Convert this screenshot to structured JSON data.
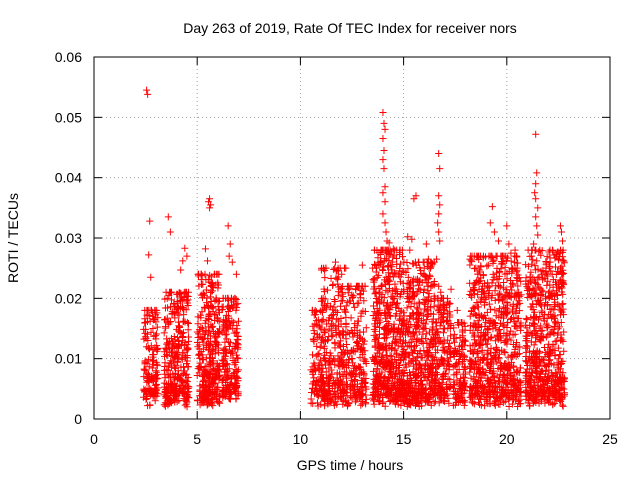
{
  "chart_data": {
    "type": "scatter",
    "title": "Day 263 of 2019, Rate Of TEC Index for receiver nors",
    "xlabel": "GPS time / hours",
    "ylabel": "ROTI / TECUs",
    "xlim": [
      0,
      25
    ],
    "ylim": [
      0,
      0.06
    ],
    "x_ticks": [
      "0",
      "5",
      "10",
      "15",
      "20",
      "25"
    ],
    "y_ticks": [
      "0",
      "0.01",
      "0.02",
      "0.03",
      "0.04",
      "0.05",
      "0.06"
    ],
    "grid": true,
    "marker": "plus",
    "color": "#ff0000",
    "clusters": [
      {
        "x_start": 2.4,
        "x_end": 3.1,
        "y_min": 0.002,
        "y_max": 0.018,
        "count": 150
      },
      {
        "x_start": 3.4,
        "x_end": 4.6,
        "y_min": 0.002,
        "y_max": 0.021,
        "count": 320
      },
      {
        "x_start": 5.0,
        "x_end": 6.1,
        "y_min": 0.002,
        "y_max": 0.024,
        "count": 320
      },
      {
        "x_start": 6.2,
        "x_end": 7.0,
        "y_min": 0.003,
        "y_max": 0.02,
        "count": 200
      },
      {
        "x_start": 10.5,
        "x_end": 11.2,
        "y_min": 0.002,
        "y_max": 0.018,
        "count": 100
      },
      {
        "x_start": 11.0,
        "x_end": 12.2,
        "y_min": 0.002,
        "y_max": 0.025,
        "count": 260
      },
      {
        "x_start": 12.2,
        "x_end": 13.2,
        "y_min": 0.002,
        "y_max": 0.022,
        "count": 200
      },
      {
        "x_start": 13.5,
        "x_end": 15.0,
        "y_min": 0.002,
        "y_max": 0.028,
        "count": 520
      },
      {
        "x_start": 15.0,
        "x_end": 16.5,
        "y_min": 0.002,
        "y_max": 0.026,
        "count": 460
      },
      {
        "x_start": 16.5,
        "x_end": 17.3,
        "y_min": 0.002,
        "y_max": 0.02,
        "count": 170
      },
      {
        "x_start": 17.4,
        "x_end": 18.0,
        "y_min": 0.002,
        "y_max": 0.016,
        "count": 120
      },
      {
        "x_start": 18.2,
        "x_end": 20.7,
        "y_min": 0.002,
        "y_max": 0.027,
        "count": 700
      },
      {
        "x_start": 20.9,
        "x_end": 22.8,
        "y_min": 0.002,
        "y_max": 0.028,
        "count": 600
      }
    ],
    "outliers": [
      {
        "x": 2.55,
        "y": 0.0545
      },
      {
        "x": 2.6,
        "y": 0.0538
      },
      {
        "x": 2.7,
        "y": 0.0328
      },
      {
        "x": 2.65,
        "y": 0.0272
      },
      {
        "x": 2.75,
        "y": 0.0235
      },
      {
        "x": 3.6,
        "y": 0.0335
      },
      {
        "x": 3.7,
        "y": 0.031
      },
      {
        "x": 4.4,
        "y": 0.0283
      },
      {
        "x": 4.3,
        "y": 0.0262
      },
      {
        "x": 4.2,
        "y": 0.0247
      },
      {
        "x": 4.5,
        "y": 0.027
      },
      {
        "x": 5.4,
        "y": 0.0282
      },
      {
        "x": 5.55,
        "y": 0.036
      },
      {
        "x": 5.6,
        "y": 0.0365
      },
      {
        "x": 5.65,
        "y": 0.0355
      },
      {
        "x": 5.6,
        "y": 0.035
      },
      {
        "x": 5.5,
        "y": 0.0262
      },
      {
        "x": 6.5,
        "y": 0.032
      },
      {
        "x": 6.6,
        "y": 0.029
      },
      {
        "x": 6.55,
        "y": 0.027
      },
      {
        "x": 6.7,
        "y": 0.026
      },
      {
        "x": 6.9,
        "y": 0.024
      },
      {
        "x": 11.7,
        "y": 0.026
      },
      {
        "x": 12.2,
        "y": 0.025
      },
      {
        "x": 12.0,
        "y": 0.024
      },
      {
        "x": 13.0,
        "y": 0.0255
      },
      {
        "x": 13.5,
        "y": 0.025
      },
      {
        "x": 14.0,
        "y": 0.0508
      },
      {
        "x": 14.05,
        "y": 0.049
      },
      {
        "x": 14.1,
        "y": 0.048
      },
      {
        "x": 14.0,
        "y": 0.0465
      },
      {
        "x": 14.05,
        "y": 0.0445
      },
      {
        "x": 14.0,
        "y": 0.043
      },
      {
        "x": 14.05,
        "y": 0.0415
      },
      {
        "x": 14.1,
        "y": 0.0385
      },
      {
        "x": 14.0,
        "y": 0.0375
      },
      {
        "x": 14.1,
        "y": 0.036
      },
      {
        "x": 14.0,
        "y": 0.034
      },
      {
        "x": 14.1,
        "y": 0.0325
      },
      {
        "x": 14.15,
        "y": 0.031
      },
      {
        "x": 14.2,
        "y": 0.0295
      },
      {
        "x": 14.05,
        "y": 0.028
      },
      {
        "x": 14.3,
        "y": 0.0292
      },
      {
        "x": 14.5,
        "y": 0.0282
      },
      {
        "x": 15.2,
        "y": 0.0302
      },
      {
        "x": 15.4,
        "y": 0.0298
      },
      {
        "x": 15.5,
        "y": 0.0365
      },
      {
        "x": 15.6,
        "y": 0.037
      },
      {
        "x": 15.3,
        "y": 0.028
      },
      {
        "x": 16.1,
        "y": 0.029
      },
      {
        "x": 16.2,
        "y": 0.0265
      },
      {
        "x": 16.0,
        "y": 0.025
      },
      {
        "x": 16.7,
        "y": 0.044
      },
      {
        "x": 16.75,
        "y": 0.0415
      },
      {
        "x": 16.7,
        "y": 0.037
      },
      {
        "x": 16.75,
        "y": 0.0355
      },
      {
        "x": 16.7,
        "y": 0.034
      },
      {
        "x": 16.65,
        "y": 0.0325
      },
      {
        "x": 16.7,
        "y": 0.031
      },
      {
        "x": 16.75,
        "y": 0.0295
      },
      {
        "x": 16.6,
        "y": 0.0265
      },
      {
        "x": 16.7,
        "y": 0.022
      },
      {
        "x": 16.8,
        "y": 0.021
      },
      {
        "x": 17.3,
        "y": 0.0215
      },
      {
        "x": 17.6,
        "y": 0.018
      },
      {
        "x": 18.2,
        "y": 0.0225
      },
      {
        "x": 18.5,
        "y": 0.025
      },
      {
        "x": 19.2,
        "y": 0.0325
      },
      {
        "x": 19.3,
        "y": 0.0352
      },
      {
        "x": 19.4,
        "y": 0.031
      },
      {
        "x": 19.6,
        "y": 0.0295
      },
      {
        "x": 20.0,
        "y": 0.032
      },
      {
        "x": 20.1,
        "y": 0.029
      },
      {
        "x": 20.4,
        "y": 0.028
      },
      {
        "x": 20.2,
        "y": 0.0275
      },
      {
        "x": 20.5,
        "y": 0.025
      },
      {
        "x": 19.8,
        "y": 0.027
      },
      {
        "x": 21.4,
        "y": 0.0472
      },
      {
        "x": 21.45,
        "y": 0.0408
      },
      {
        "x": 21.4,
        "y": 0.039
      },
      {
        "x": 21.35,
        "y": 0.0375
      },
      {
        "x": 21.4,
        "y": 0.0365
      },
      {
        "x": 21.5,
        "y": 0.035
      },
      {
        "x": 21.4,
        "y": 0.0335
      },
      {
        "x": 21.45,
        "y": 0.032
      },
      {
        "x": 21.5,
        "y": 0.0305
      },
      {
        "x": 21.3,
        "y": 0.029
      },
      {
        "x": 21.6,
        "y": 0.028
      },
      {
        "x": 21.2,
        "y": 0.027
      },
      {
        "x": 21.9,
        "y": 0.025
      },
      {
        "x": 22.1,
        "y": 0.026
      },
      {
        "x": 22.2,
        "y": 0.024
      },
      {
        "x": 22.6,
        "y": 0.032
      },
      {
        "x": 22.65,
        "y": 0.031
      },
      {
        "x": 22.7,
        "y": 0.0295
      },
      {
        "x": 22.6,
        "y": 0.028
      },
      {
        "x": 22.5,
        "y": 0.0265
      },
      {
        "x": 22.7,
        "y": 0.024
      }
    ]
  }
}
